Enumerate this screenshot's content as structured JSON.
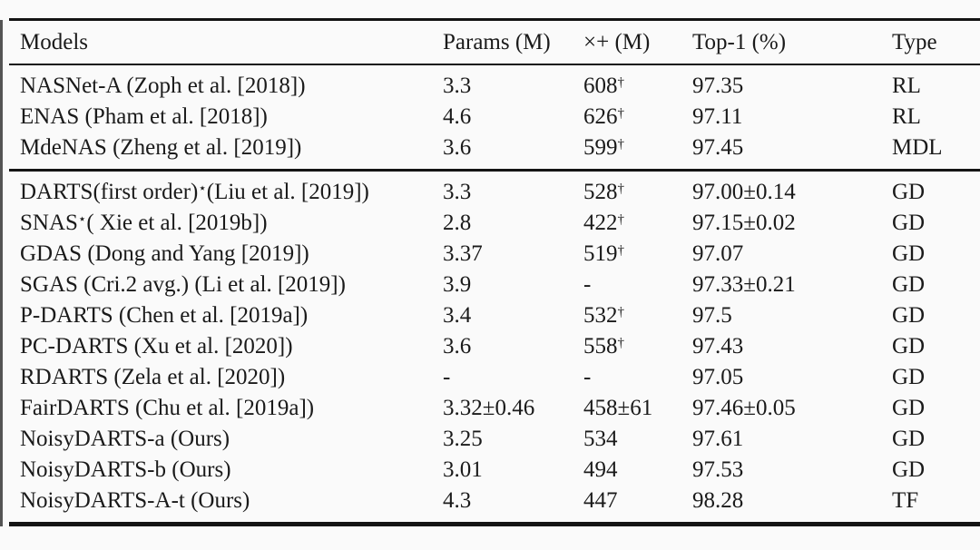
{
  "colors": {
    "background": "#fafafa",
    "text": "#1a1a1a",
    "rule": "#141414"
  },
  "table": {
    "columns": [
      {
        "label": "Models"
      },
      {
        "label": "Params (M)"
      },
      {
        "label": "×+ (M)"
      },
      {
        "label": "Top-1 (%)"
      },
      {
        "label": "Type"
      }
    ],
    "groups": [
      {
        "rows": [
          {
            "model": "NASNet-A (Zoph et al. [2018])",
            "model_sup": "",
            "model_post": "",
            "params": "3.3",
            "madds": "608",
            "madds_sup": "†",
            "top1": "97.35",
            "type": "RL"
          },
          {
            "model": "ENAS (Pham et al. [2018])",
            "model_sup": "",
            "model_post": "",
            "params": "4.6",
            "madds": "626",
            "madds_sup": "†",
            "top1": "97.11",
            "type": "RL"
          },
          {
            "model": "MdeNAS (Zheng et al. [2019])",
            "model_sup": "",
            "model_post": "",
            "params": "3.6",
            "madds": "599",
            "madds_sup": "†",
            "top1": "97.45",
            "type": "MDL"
          }
        ]
      },
      {
        "rows": [
          {
            "model": "DARTS(first order)",
            "model_sup": "⋆",
            "model_post": "(Liu et al. [2019])",
            "params": "3.3",
            "madds": "528",
            "madds_sup": "†",
            "top1": "97.00±0.14",
            "type": "GD"
          },
          {
            "model": "SNAS",
            "model_sup": "⋆",
            "model_post": "( Xie et al. [2019b])",
            "params": "2.8",
            "madds": "422",
            "madds_sup": "†",
            "top1": "97.15±0.02",
            "type": "GD"
          },
          {
            "model": "GDAS (Dong and Yang [2019])",
            "model_sup": "",
            "model_post": "",
            "params": "3.37",
            "madds": "519",
            "madds_sup": "†",
            "top1": "97.07",
            "type": "GD"
          },
          {
            "model": "SGAS (Cri.2 avg.) (Li et al. [2019])",
            "model_sup": "",
            "model_post": "",
            "params": "3.9",
            "madds": "-",
            "madds_sup": "",
            "top1": "97.33±0.21",
            "type": "GD"
          },
          {
            "model": "P-DARTS (Chen et al. [2019a])",
            "model_sup": "",
            "model_post": "",
            "params": "3.4",
            "madds": "532",
            "madds_sup": "†",
            "top1": "97.5",
            "type": "GD"
          },
          {
            "model": "PC-DARTS (Xu et al. [2020])",
            "model_sup": "",
            "model_post": "",
            "params": "3.6",
            "madds": "558",
            "madds_sup": "†",
            "top1": "97.43",
            "type": "GD"
          },
          {
            "model": "RDARTS (Zela et al. [2020])",
            "model_sup": "",
            "model_post": "",
            "params": "-",
            "madds": "-",
            "madds_sup": "",
            "top1": "97.05",
            "type": "GD"
          },
          {
            "model": "FairDARTS (Chu et al. [2019a])",
            "model_sup": "",
            "model_post": "",
            "params": "3.32±0.46",
            "madds": "458±61",
            "madds_sup": "",
            "top1": "97.46±0.05",
            "type": "GD"
          },
          {
            "model": "NoisyDARTS-a (Ours)",
            "model_sup": "",
            "model_post": "",
            "params": "3.25",
            "madds": "534",
            "madds_sup": "",
            "top1": "97.61",
            "type": "GD"
          },
          {
            "model": "NoisyDARTS-b (Ours)",
            "model_sup": "",
            "model_post": "",
            "params": "3.01",
            "madds": "494",
            "madds_sup": "",
            "top1": "97.53",
            "type": "GD"
          },
          {
            "model": "NoisyDARTS-A-t (Ours)",
            "model_sup": "",
            "model_post": "",
            "params": "4.3",
            "madds": "447",
            "madds_sup": "",
            "top1": "98.28",
            "type": "TF"
          }
        ]
      }
    ]
  }
}
